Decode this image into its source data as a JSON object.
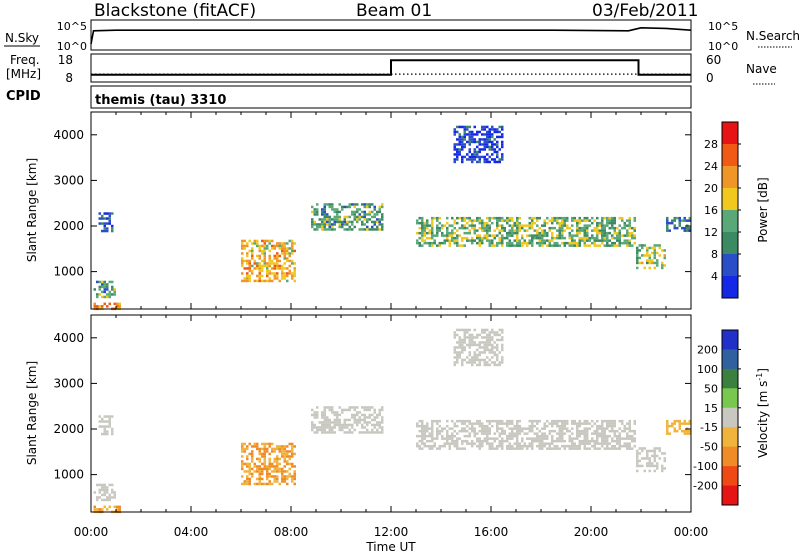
{
  "header": {
    "station": "Blackstone (fitACF)",
    "beam": "Beam 01",
    "date": "03/Feb/2011"
  },
  "nsky_panel": {
    "left_label": "N.Sky",
    "left_ticks": [
      "10^5",
      "10^0"
    ],
    "right_ticks": [
      "10^5",
      "10^0"
    ],
    "right_label": "N.Search"
  },
  "freq_panel": {
    "left_label_line1": "Freq.",
    "left_label_line2": "[MHz]",
    "left_ticks": [
      "18",
      "8"
    ],
    "right_ticks": [
      "60",
      "0"
    ],
    "right_label": "Nave",
    "cpid_label": "CPID",
    "cpid_value": "themis (tau) 3310"
  },
  "colors": {
    "power_scale": [
      "#1428e6",
      "#2a4ec8",
      "#3c8a64",
      "#5aa878",
      "#f0c81e",
      "#f09628",
      "#f05a14",
      "#e61414"
    ],
    "velocity_scale": [
      "#2030c8",
      "#3060a0",
      "#3c8040",
      "#78c850",
      "#c8c8c0",
      "#f0b43c",
      "#f08c28",
      "#f04a14",
      "#e61414"
    ],
    "ground_scatter": "#c8c8c0"
  },
  "chart_data": [
    {
      "type": "line",
      "title": "N.Sky / N.Search",
      "x_range": [
        "00:00",
        "24:00"
      ],
      "y_scale": "log",
      "ylim": [
        1,
        100000
      ],
      "series": [
        {
          "name": "N.Sky",
          "description_values": [
            [
              0.0,
              1.0
            ],
            [
              0.1,
              3.2
            ],
            [
              1.0,
              3.3
            ],
            [
              5.5,
              3.3
            ],
            [
              9.0,
              3.3
            ],
            [
              12.0,
              3.3
            ],
            [
              18.5,
              3.3
            ],
            [
              21.5,
              3.2
            ],
            [
              22.0,
              3.7
            ],
            [
              23.0,
              3.6
            ],
            [
              24.0,
              3.3
            ]
          ]
        }
      ]
    },
    {
      "type": "line",
      "title": "Freq. / Nave",
      "x_range": [
        "00:00",
        "24:00"
      ],
      "ylim_left": [
        8,
        18
      ],
      "ylim_right": [
        0,
        60
      ],
      "series": [
        {
          "name": "Freq.",
          "values": [
            [
              0.0,
              10.6
            ],
            [
              12.0,
              10.6
            ],
            [
              12.0,
              15.8
            ],
            [
              21.9,
              15.8
            ],
            [
              21.9,
              10.6
            ],
            [
              24.0,
              10.6
            ]
          ]
        },
        {
          "name": "Nave",
          "values": [
            [
              0.0,
              17
            ],
            [
              24.0,
              17
            ]
          ]
        }
      ]
    },
    {
      "type": "heatmap",
      "title": "Power [dB]",
      "xlabel": "Time UT",
      "ylabel": "Slant Range [km]",
      "x_ticks": [
        "00:00",
        "04:00",
        "08:00",
        "12:00",
        "16:00",
        "20:00",
        "00:00"
      ],
      "y_ticks": [
        "1000",
        "2000",
        "3000",
        "4000"
      ],
      "ylim": [
        180,
        4500
      ],
      "colorbar_label": "Power [dB]",
      "colorbar_ticks": [
        "4",
        "8",
        "12",
        "16",
        "20",
        "24",
        "28"
      ],
      "colorbar_range": [
        0,
        32
      ],
      "regions": [
        {
          "t": [
            0.1,
            1.2
          ],
          "r": [
            200,
            320
          ],
          "value": 22
        },
        {
          "t": [
            0.1,
            1.0
          ],
          "r": [
            450,
            800
          ],
          "value": 12
        },
        {
          "t": [
            0.3,
            0.9
          ],
          "r": [
            1900,
            2300
          ],
          "value": 6
        },
        {
          "t": [
            6.0,
            8.2
          ],
          "r": [
            800,
            1700
          ],
          "value": 20
        },
        {
          "t": [
            8.8,
            11.7
          ],
          "r": [
            1900,
            2500
          ],
          "value": 12
        },
        {
          "t": [
            13.0,
            21.8
          ],
          "r": [
            1550,
            2200
          ],
          "value": 14
        },
        {
          "t": [
            21.8,
            23.0
          ],
          "r": [
            1100,
            1600
          ],
          "value": 16
        },
        {
          "t": [
            23.0,
            24.0
          ],
          "r": [
            1900,
            2200
          ],
          "value": 8
        },
        {
          "t": [
            14.5,
            16.5
          ],
          "r": [
            3400,
            4200
          ],
          "value": 4
        }
      ]
    },
    {
      "type": "heatmap",
      "title": "Velocity [m s^-1]",
      "xlabel": "Time UT",
      "ylabel": "Slant Range [km]",
      "x_ticks": [
        "00:00",
        "04:00",
        "08:00",
        "12:00",
        "16:00",
        "20:00",
        "00:00"
      ],
      "y_ticks": [
        "1000",
        "2000",
        "3000",
        "4000"
      ],
      "ylim": [
        180,
        4500
      ],
      "colorbar_label": "Velocity [m s^-1]",
      "colorbar_ticks": [
        "200",
        "100",
        "50",
        "15",
        "-15",
        "-50",
        "-100",
        "-200"
      ],
      "regions": [
        {
          "t": [
            0.1,
            1.2
          ],
          "r": [
            200,
            320
          ],
          "value": -50
        },
        {
          "t": [
            0.1,
            1.0
          ],
          "r": [
            450,
            800
          ],
          "value": 0
        },
        {
          "t": [
            0.3,
            0.9
          ],
          "r": [
            1900,
            2300
          ],
          "value": 0
        },
        {
          "t": [
            6.0,
            8.2
          ],
          "r": [
            800,
            1700
          ],
          "value": -50
        },
        {
          "t": [
            8.8,
            11.7
          ],
          "r": [
            1900,
            2500
          ],
          "value": 0
        },
        {
          "t": [
            13.0,
            21.8
          ],
          "r": [
            1550,
            2200
          ],
          "value": 0
        },
        {
          "t": [
            21.8,
            23.0
          ],
          "r": [
            1100,
            1600
          ],
          "value": 0
        },
        {
          "t": [
            23.0,
            24.0
          ],
          "r": [
            1900,
            2200
          ],
          "value": -30
        },
        {
          "t": [
            14.5,
            16.5
          ],
          "r": [
            3400,
            4200
          ],
          "value": 0
        }
      ]
    }
  ],
  "power_colorbar": {
    "label": "Power [dB]",
    "ticks": [
      "28",
      "24",
      "20",
      "16",
      "12",
      "8",
      "4"
    ]
  },
  "velocity_colorbar": {
    "label": "Velocity [m s",
    "label_sup": "-1",
    "label_end": "]",
    "ticks": [
      "200",
      "100",
      "50",
      "15",
      "-15",
      "-50",
      "-100",
      "-200"
    ]
  },
  "axes": {
    "ylabel": "Slant Range [km]",
    "xlabel": "Time UT",
    "x_ticks": [
      "00:00",
      "04:00",
      "08:00",
      "12:00",
      "16:00",
      "20:00",
      "00:00"
    ],
    "y_ticks": [
      "1000",
      "2000",
      "3000",
      "4000"
    ]
  }
}
